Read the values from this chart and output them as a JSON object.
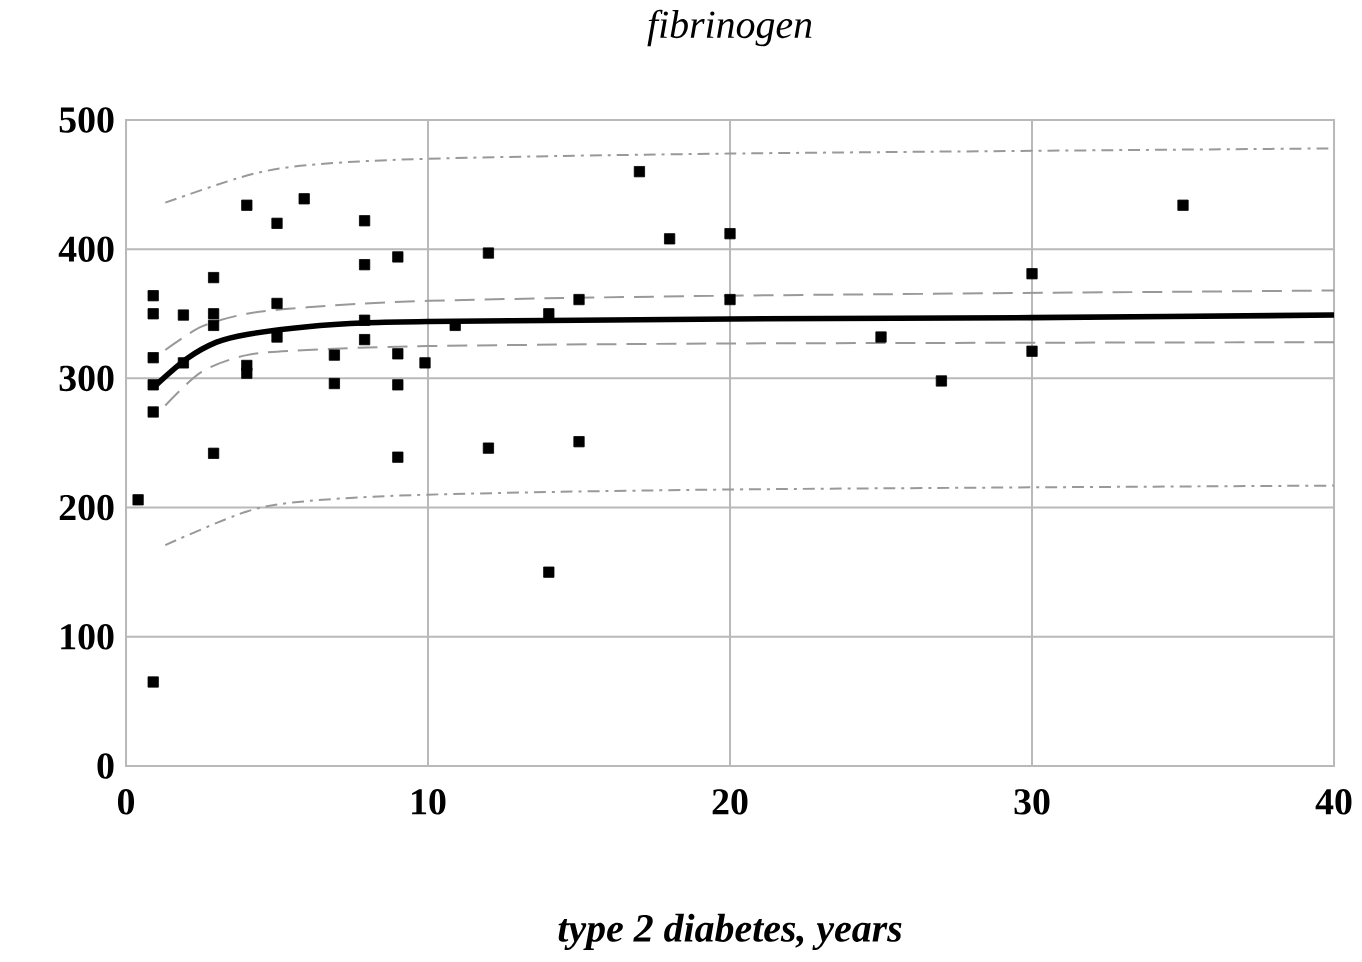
{
  "chart_data": {
    "type": "scatter",
    "title": "fibrinogen",
    "xlabel": "type 2 diabetes, years",
    "xlim": [
      0,
      40
    ],
    "xticks": [
      0,
      10,
      20,
      30,
      40
    ],
    "ylim": [
      0,
      500
    ],
    "yticks": [
      0,
      100,
      200,
      300,
      400,
      500
    ],
    "grid": true,
    "series": [
      {
        "color": "#000000",
        "marker": "square",
        "x": [
          0.4,
          0.9,
          0.9,
          0.9,
          0.9,
          0.9,
          0.9,
          1.9,
          1.9,
          2.9,
          2.9,
          2.9,
          2.9,
          4,
          4,
          4,
          5,
          5,
          5,
          5.9,
          6.9,
          6.9,
          7.9,
          7.9,
          7.9,
          7.9,
          9,
          9,
          9,
          9,
          9.9,
          10.9,
          12,
          12,
          14,
          14,
          15,
          15,
          17,
          18,
          20,
          20,
          25,
          27,
          30,
          30,
          35
        ],
        "values": [
          206,
          65,
          364,
          350,
          316,
          295,
          274,
          349,
          312,
          378,
          350,
          341,
          242,
          434,
          310,
          304,
          420,
          358,
          332,
          439,
          318,
          296,
          422,
          388,
          345,
          330,
          394,
          319,
          295,
          239,
          312,
          341,
          397,
          246,
          150,
          350,
          361,
          251,
          460,
          408,
          412,
          361,
          332,
          298,
          381,
          321,
          434
        ]
      },
      {
        "type": "line",
        "color": "#000000",
        "line_style": "solid",
        "x": [
          1,
          2,
          3,
          4,
          6,
          8,
          10,
          15,
          20,
          30,
          40
        ],
        "values": [
          295,
          315,
          328,
          334,
          340,
          343,
          344,
          345,
          346,
          347,
          349
        ]
      },
      {
        "type": "line",
        "color": "#999999",
        "line_style": "dashed",
        "x": [
          1.3,
          2.5,
          4,
          6,
          10,
          20,
          40
        ],
        "values": [
          322,
          340,
          350,
          355,
          360,
          364,
          368
        ]
      },
      {
        "type": "line",
        "color": "#999999",
        "line_style": "dashed",
        "x": [
          1.3,
          2.5,
          4,
          6,
          10,
          20,
          40
        ],
        "values": [
          279,
          305,
          318,
          322,
          325,
          327,
          328
        ]
      },
      {
        "type": "line",
        "color": "#999999",
        "line_style": "dashdot",
        "x": [
          1.3,
          4,
          6,
          10,
          20,
          40
        ],
        "values": [
          436,
          457,
          465,
          470,
          474,
          478
        ]
      },
      {
        "type": "line",
        "color": "#999999",
        "line_style": "dashdot",
        "x": [
          1.3,
          4,
          6,
          10,
          20,
          40
        ],
        "values": [
          171,
          197,
          205,
          210,
          214,
          217
        ]
      }
    ]
  }
}
